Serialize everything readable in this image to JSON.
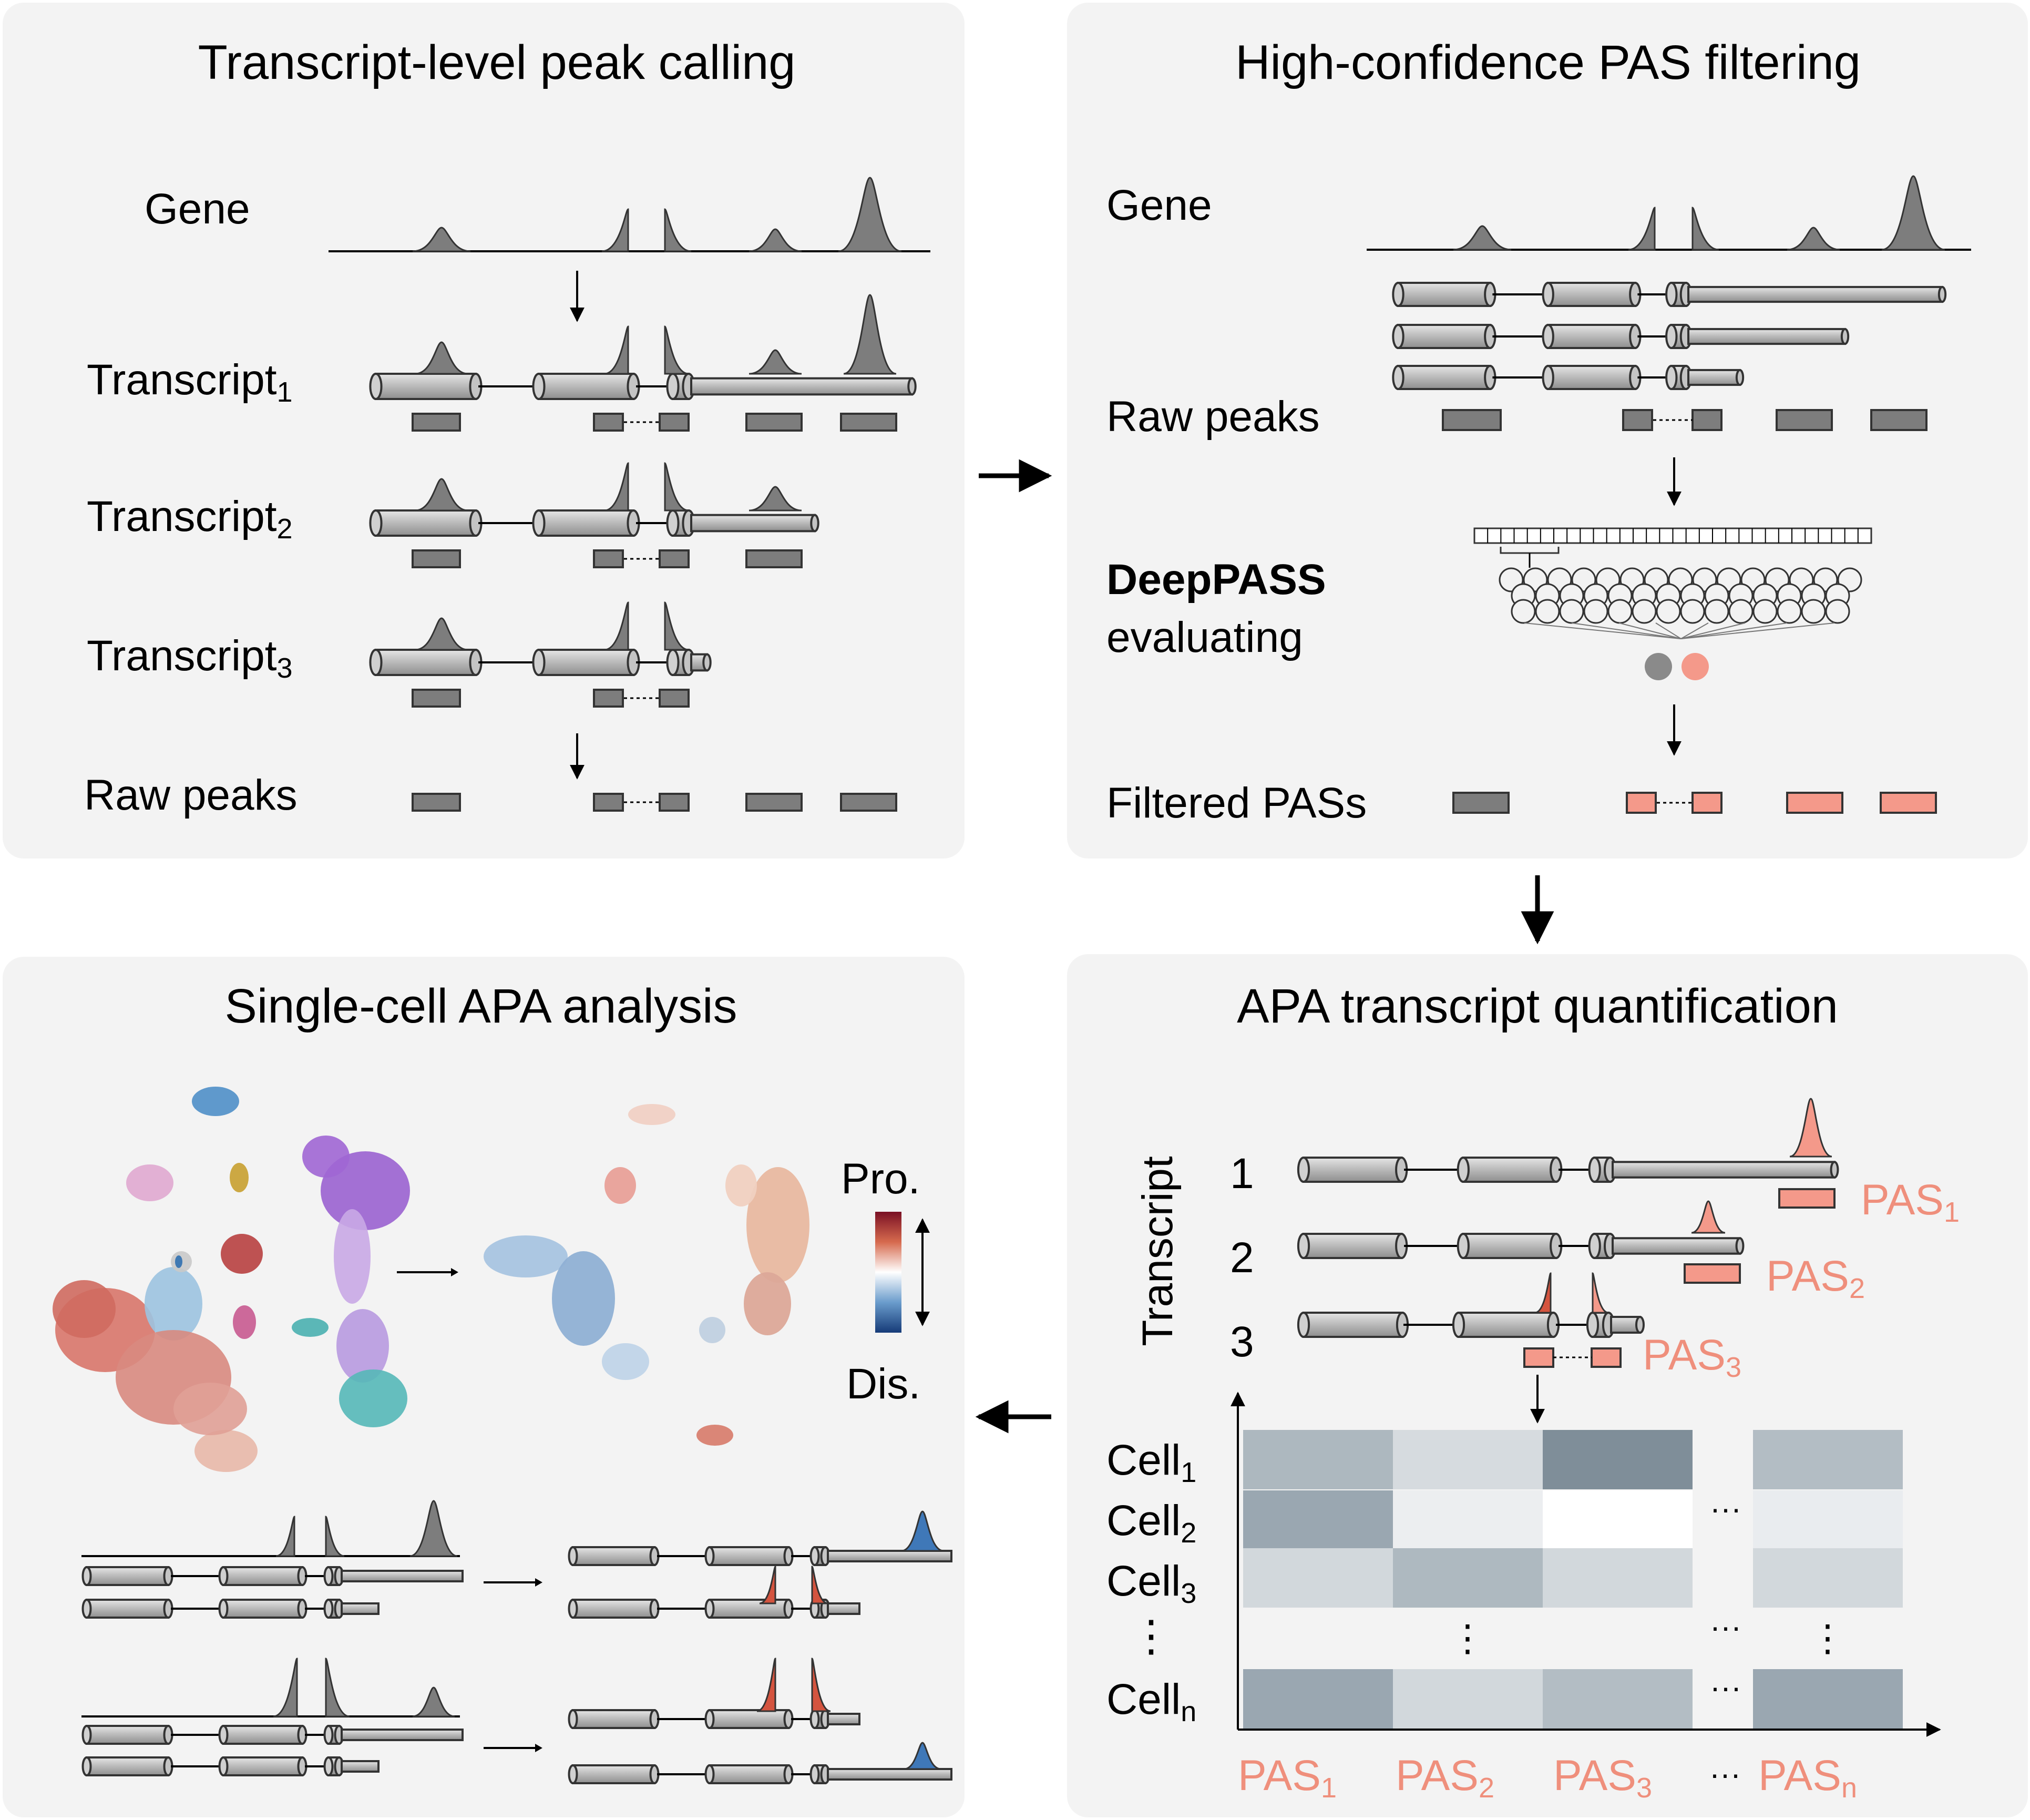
{
  "panels": {
    "peak_calling": {
      "title": "Transcript-level peak calling",
      "row_gene": "Gene",
      "transcripts": [
        {
          "label": "Transcript",
          "sub": "1"
        },
        {
          "label": "Transcript",
          "sub": "2"
        },
        {
          "label": "Transcript",
          "sub": "3"
        }
      ],
      "row_raw_peaks": "Raw peaks"
    },
    "pas_filtering": {
      "title": "High-confidence PAS filtering",
      "row_gene": "Gene",
      "row_raw_peaks": "Raw peaks",
      "model_name": "DeepPASS",
      "model_action": "evaluating",
      "row_filtered": "Filtered PASs"
    },
    "quantification": {
      "title": "APA transcript quantification",
      "axis_label": "Transcript",
      "transcript_numbers": [
        "1",
        "2",
        "3"
      ],
      "pas_labels": [
        {
          "label": "PAS",
          "sub": "1"
        },
        {
          "label": "PAS",
          "sub": "2"
        },
        {
          "label": "PAS",
          "sub": "3"
        }
      ],
      "cells": [
        {
          "label": "Cell",
          "sub": "1"
        },
        {
          "label": "Cell",
          "sub": "2"
        },
        {
          "label": "Cell",
          "sub": "3"
        },
        {
          "label": "⋮",
          "sub": ""
        },
        {
          "label": "Cell",
          "sub": "n"
        }
      ],
      "columns": [
        {
          "label": "PAS",
          "sub": "1"
        },
        {
          "label": "PAS",
          "sub": "2"
        },
        {
          "label": "PAS",
          "sub": "3"
        },
        {
          "label": "···",
          "sub": ""
        },
        {
          "label": "PAS",
          "sub": "n"
        }
      ]
    },
    "single_cell": {
      "title": "Single-cell APA analysis",
      "legend_top": "Pro.",
      "legend_bottom": "Dis."
    }
  },
  "colors": {
    "panel_bg": "#f3f3f3",
    "peak_gray": "#7d7d7d",
    "pas_salmon": "#f4998a",
    "pas_text": "#ef8f7c",
    "proximal_red": "#d4543f",
    "distal_blue": "#3f78b8",
    "heat_dark": "#7f8e99",
    "heat_light": "#e9ecef"
  },
  "icons": [
    "arrow-right-icon",
    "arrow-down-icon",
    "arrow-left-icon",
    "neural-network-icon",
    "umap-cluster-plot",
    "umap-apa-plot",
    "colorbar-icon"
  ]
}
